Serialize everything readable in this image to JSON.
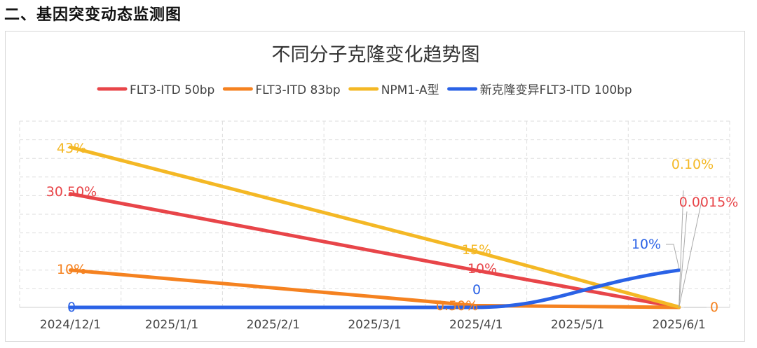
{
  "section_heading": "二、基因突变动态监测图",
  "chart_data": {
    "type": "line",
    "title": "不同分子克隆变化趋势图",
    "xlabel": "",
    "ylabel": "",
    "legend_position": "top",
    "grid": true,
    "x_ticks": [
      "2024/12/1",
      "2025/1/1",
      "2025/2/1",
      "2025/3/1",
      "2025/4/1",
      "2025/5/1",
      "2025/6/1"
    ],
    "series": [
      {
        "name": "FLT3-ITD 50bp",
        "color": "#e84549",
        "points": [
          {
            "x": "2024/12/1",
            "y": 30.5,
            "label": "30.50%"
          },
          {
            "x": "2025/4/1",
            "y": 10,
            "label": "10%"
          },
          {
            "x": "2025/6/1",
            "y": 0.0015,
            "label": "0.0015%"
          }
        ]
      },
      {
        "name": "FLT3-ITD 83bp",
        "color": "#f58220",
        "points": [
          {
            "x": "2024/12/1",
            "y": 10,
            "label": "10%"
          },
          {
            "x": "2025/4/1",
            "y": 0.5,
            "label": "0.50%"
          },
          {
            "x": "2025/6/1",
            "y": 0,
            "label": "0"
          }
        ]
      },
      {
        "name": "NPM1-A型",
        "color": "#f4b825",
        "points": [
          {
            "x": "2024/12/1",
            "y": 43,
            "label": "43%"
          },
          {
            "x": "2025/4/1",
            "y": 15,
            "label": "15%"
          },
          {
            "x": "2025/6/1",
            "y": 0.1,
            "label": "0.10%"
          }
        ]
      },
      {
        "name": "新克隆变异FLT3-ITD 100bp",
        "color": "#2a62e6",
        "points": [
          {
            "x": "2024/12/1",
            "y": 0,
            "label": "0"
          },
          {
            "x": "2025/4/1",
            "y": 0,
            "label": "0"
          },
          {
            "x": "2025/6/1",
            "y": 10,
            "label": "10%"
          }
        ]
      }
    ]
  }
}
